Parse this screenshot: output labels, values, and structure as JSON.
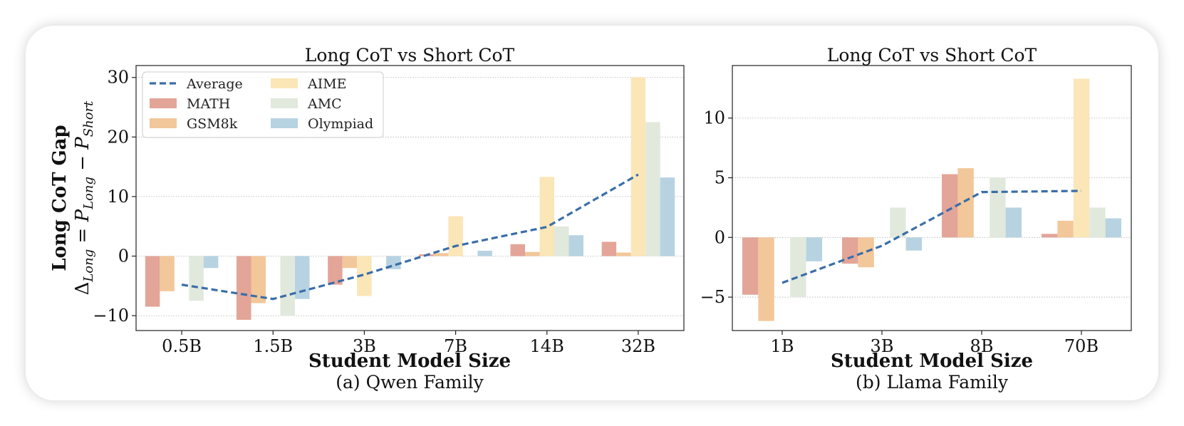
{
  "ylabel_main": "Long CoT Gap",
  "ylabel_formula": "Δ_Long = P_Long − P_Short",
  "xlabel": "Student Model Size",
  "colors": {
    "MATH": "#e3a598",
    "GSM8k": "#f2c79a",
    "AIME": "#fbe6b8",
    "AMC": "#e1e9dd",
    "Olympiad": "#b7d3e2",
    "Average": "#3a6ea8"
  },
  "chart_data": [
    {
      "type": "bar",
      "title": "Long CoT vs Short CoT",
      "caption": "(a) Qwen Family",
      "xlabel": "Student Model Size",
      "categories": [
        "0.5B",
        "1.5B",
        "3B",
        "7B",
        "14B",
        "32B"
      ],
      "ylim": [
        -12.5,
        32
      ],
      "yticks": [
        -10,
        0,
        10,
        20,
        30
      ],
      "grid": true,
      "legend": "top-left",
      "series": [
        {
          "name": "MATH",
          "values": [
            -8.5,
            -10.7,
            -4.8,
            0.3,
            2.0,
            2.4
          ]
        },
        {
          "name": "GSM8k",
          "values": [
            -5.9,
            -7.9,
            -2.0,
            0.5,
            0.7,
            0.6
          ]
        },
        {
          "name": "AIME",
          "values": [
            0.0,
            0.0,
            -6.7,
            6.7,
            13.3,
            30.0
          ]
        },
        {
          "name": "AMC",
          "values": [
            -7.5,
            -10.0,
            0.0,
            0.0,
            5.0,
            22.5
          ]
        },
        {
          "name": "Olympiad",
          "values": [
            -2.0,
            -7.2,
            -2.2,
            0.9,
            3.5,
            13.2
          ]
        }
      ],
      "line": {
        "name": "Average",
        "values": [
          -4.8,
          -7.2,
          -3.1,
          1.7,
          4.9,
          13.7
        ]
      }
    },
    {
      "type": "bar",
      "title": "Long CoT vs Short CoT",
      "caption": "(b) Llama Family",
      "xlabel": "Student Model Size",
      "categories": [
        "1B",
        "3B",
        "8B",
        "70B"
      ],
      "ylim": [
        -7.8,
        14.4
      ],
      "yticks": [
        -5,
        0,
        5,
        10
      ],
      "grid": true,
      "legend": "none",
      "series": [
        {
          "name": "MATH",
          "values": [
            -4.8,
            -2.2,
            5.3,
            0.3
          ]
        },
        {
          "name": "GSM8k",
          "values": [
            -7.0,
            -2.5,
            5.8,
            1.4
          ]
        },
        {
          "name": "AIME",
          "values": [
            0.0,
            0.0,
            0.0,
            13.3
          ]
        },
        {
          "name": "AMC",
          "values": [
            -5.0,
            2.5,
            5.0,
            2.5
          ]
        },
        {
          "name": "Olympiad",
          "values": [
            -2.0,
            -1.1,
            2.5,
            1.6
          ]
        }
      ],
      "line": {
        "name": "Average",
        "values": [
          -3.8,
          -0.7,
          3.8,
          3.9
        ]
      }
    }
  ]
}
